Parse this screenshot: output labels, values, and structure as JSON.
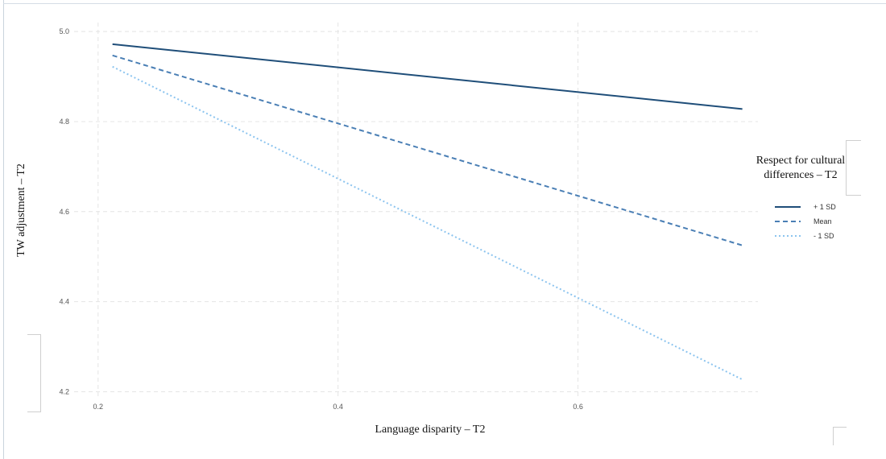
{
  "chart_data": {
    "type": "line",
    "xlabel": "Language disparity – T2",
    "ylabel": "TW adjustment – T2",
    "xlim": [
      0.18,
      0.75
    ],
    "ylim": [
      4.19,
      5.02
    ],
    "x_ticks": [
      0.2,
      0.4,
      0.6
    ],
    "x_tick_labels": [
      "0.2",
      "0.4",
      "0.6"
    ],
    "y_ticks": [
      4.2,
      4.4,
      4.6,
      4.8,
      5.0
    ],
    "y_tick_labels": [
      "4.2",
      "4.4",
      "4.6",
      "4.8",
      "5.0"
    ],
    "grid": true,
    "legend": {
      "title_lines": [
        "Respect for cultural",
        "differences – T2"
      ],
      "placement": "right"
    },
    "series": [
      {
        "name": "+ 1 SD",
        "x": [
          0.212,
          0.737
        ],
        "y": [
          4.972,
          4.828
        ],
        "color": "#1f4e79",
        "dash": "solid"
      },
      {
        "name": "Mean",
        "x": [
          0.212,
          0.737
        ],
        "y": [
          4.947,
          4.525
        ],
        "color": "#4a7fb5",
        "dash": "dashed"
      },
      {
        "name": "- 1 SD",
        "x": [
          0.212,
          0.737
        ],
        "y": [
          4.922,
          4.227
        ],
        "color": "#8cc4ef",
        "dash": "dotted"
      }
    ]
  }
}
